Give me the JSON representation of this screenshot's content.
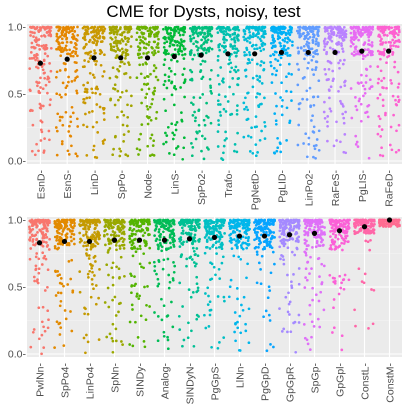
{
  "chart_data": {
    "type": "scatter",
    "title": "CME  for  Dysts, noisy, test",
    "grid": true,
    "panels": [
      {
        "ylim": [
          0,
          1
        ],
        "yticks": [
          0.0,
          0.5,
          1.0
        ],
        "ytick_labels": [
          "0.0-",
          "0.5-",
          "1.0-"
        ],
        "categories": [
          "EsnD",
          "EsnS",
          "LinD",
          "SpPo",
          "Node",
          "LinS",
          "SpPo2",
          "Trafo",
          "PgNetD",
          "PgLID",
          "LinPo2",
          "RaFeS",
          "PgLIS",
          "RaFeD"
        ],
        "means": [
          0.73,
          0.76,
          0.77,
          0.77,
          0.77,
          0.78,
          0.79,
          0.8,
          0.8,
          0.81,
          0.81,
          0.81,
          0.82,
          0.82
        ],
        "colors": [
          "#F8766D",
          "#E58700",
          "#C99800",
          "#A3A500",
          "#6BB100",
          "#00BA38",
          "#00BF7D",
          "#00C0AF",
          "#00BCD8",
          "#00B0F6",
          "#619CFF",
          "#B983FF",
          "#E76BF3",
          "#FD61D1"
        ]
      },
      {
        "ylim": [
          0,
          1
        ],
        "yticks": [
          0.0,
          0.5,
          1.0
        ],
        "ytick_labels": [
          "0.0-",
          "0.5-",
          "1.0-"
        ],
        "categories": [
          "PwlNn",
          "SpPo4",
          "LinPo4",
          "SpNn",
          "SINDy",
          "Analog",
          "SINDyN",
          "PgGpS",
          "LlNn",
          "PgGpD",
          "GpGpR",
          "SpGp",
          "GpGpl",
          "ConstL",
          "ConstM"
        ],
        "means": [
          0.83,
          0.84,
          0.84,
          0.85,
          0.85,
          0.85,
          0.86,
          0.87,
          0.88,
          0.88,
          0.89,
          0.9,
          0.92,
          0.95,
          1.0
        ],
        "colors": [
          "#F8766D",
          "#E28A00",
          "#C49A00",
          "#99A800",
          "#53B400",
          "#00BC56",
          "#00C094",
          "#00BFC4",
          "#00B6EB",
          "#06A4FF",
          "#A58AFF",
          "#DF70F8",
          "#FB61D7",
          "#FF66A8",
          "#FF6C91"
        ]
      }
    ]
  }
}
